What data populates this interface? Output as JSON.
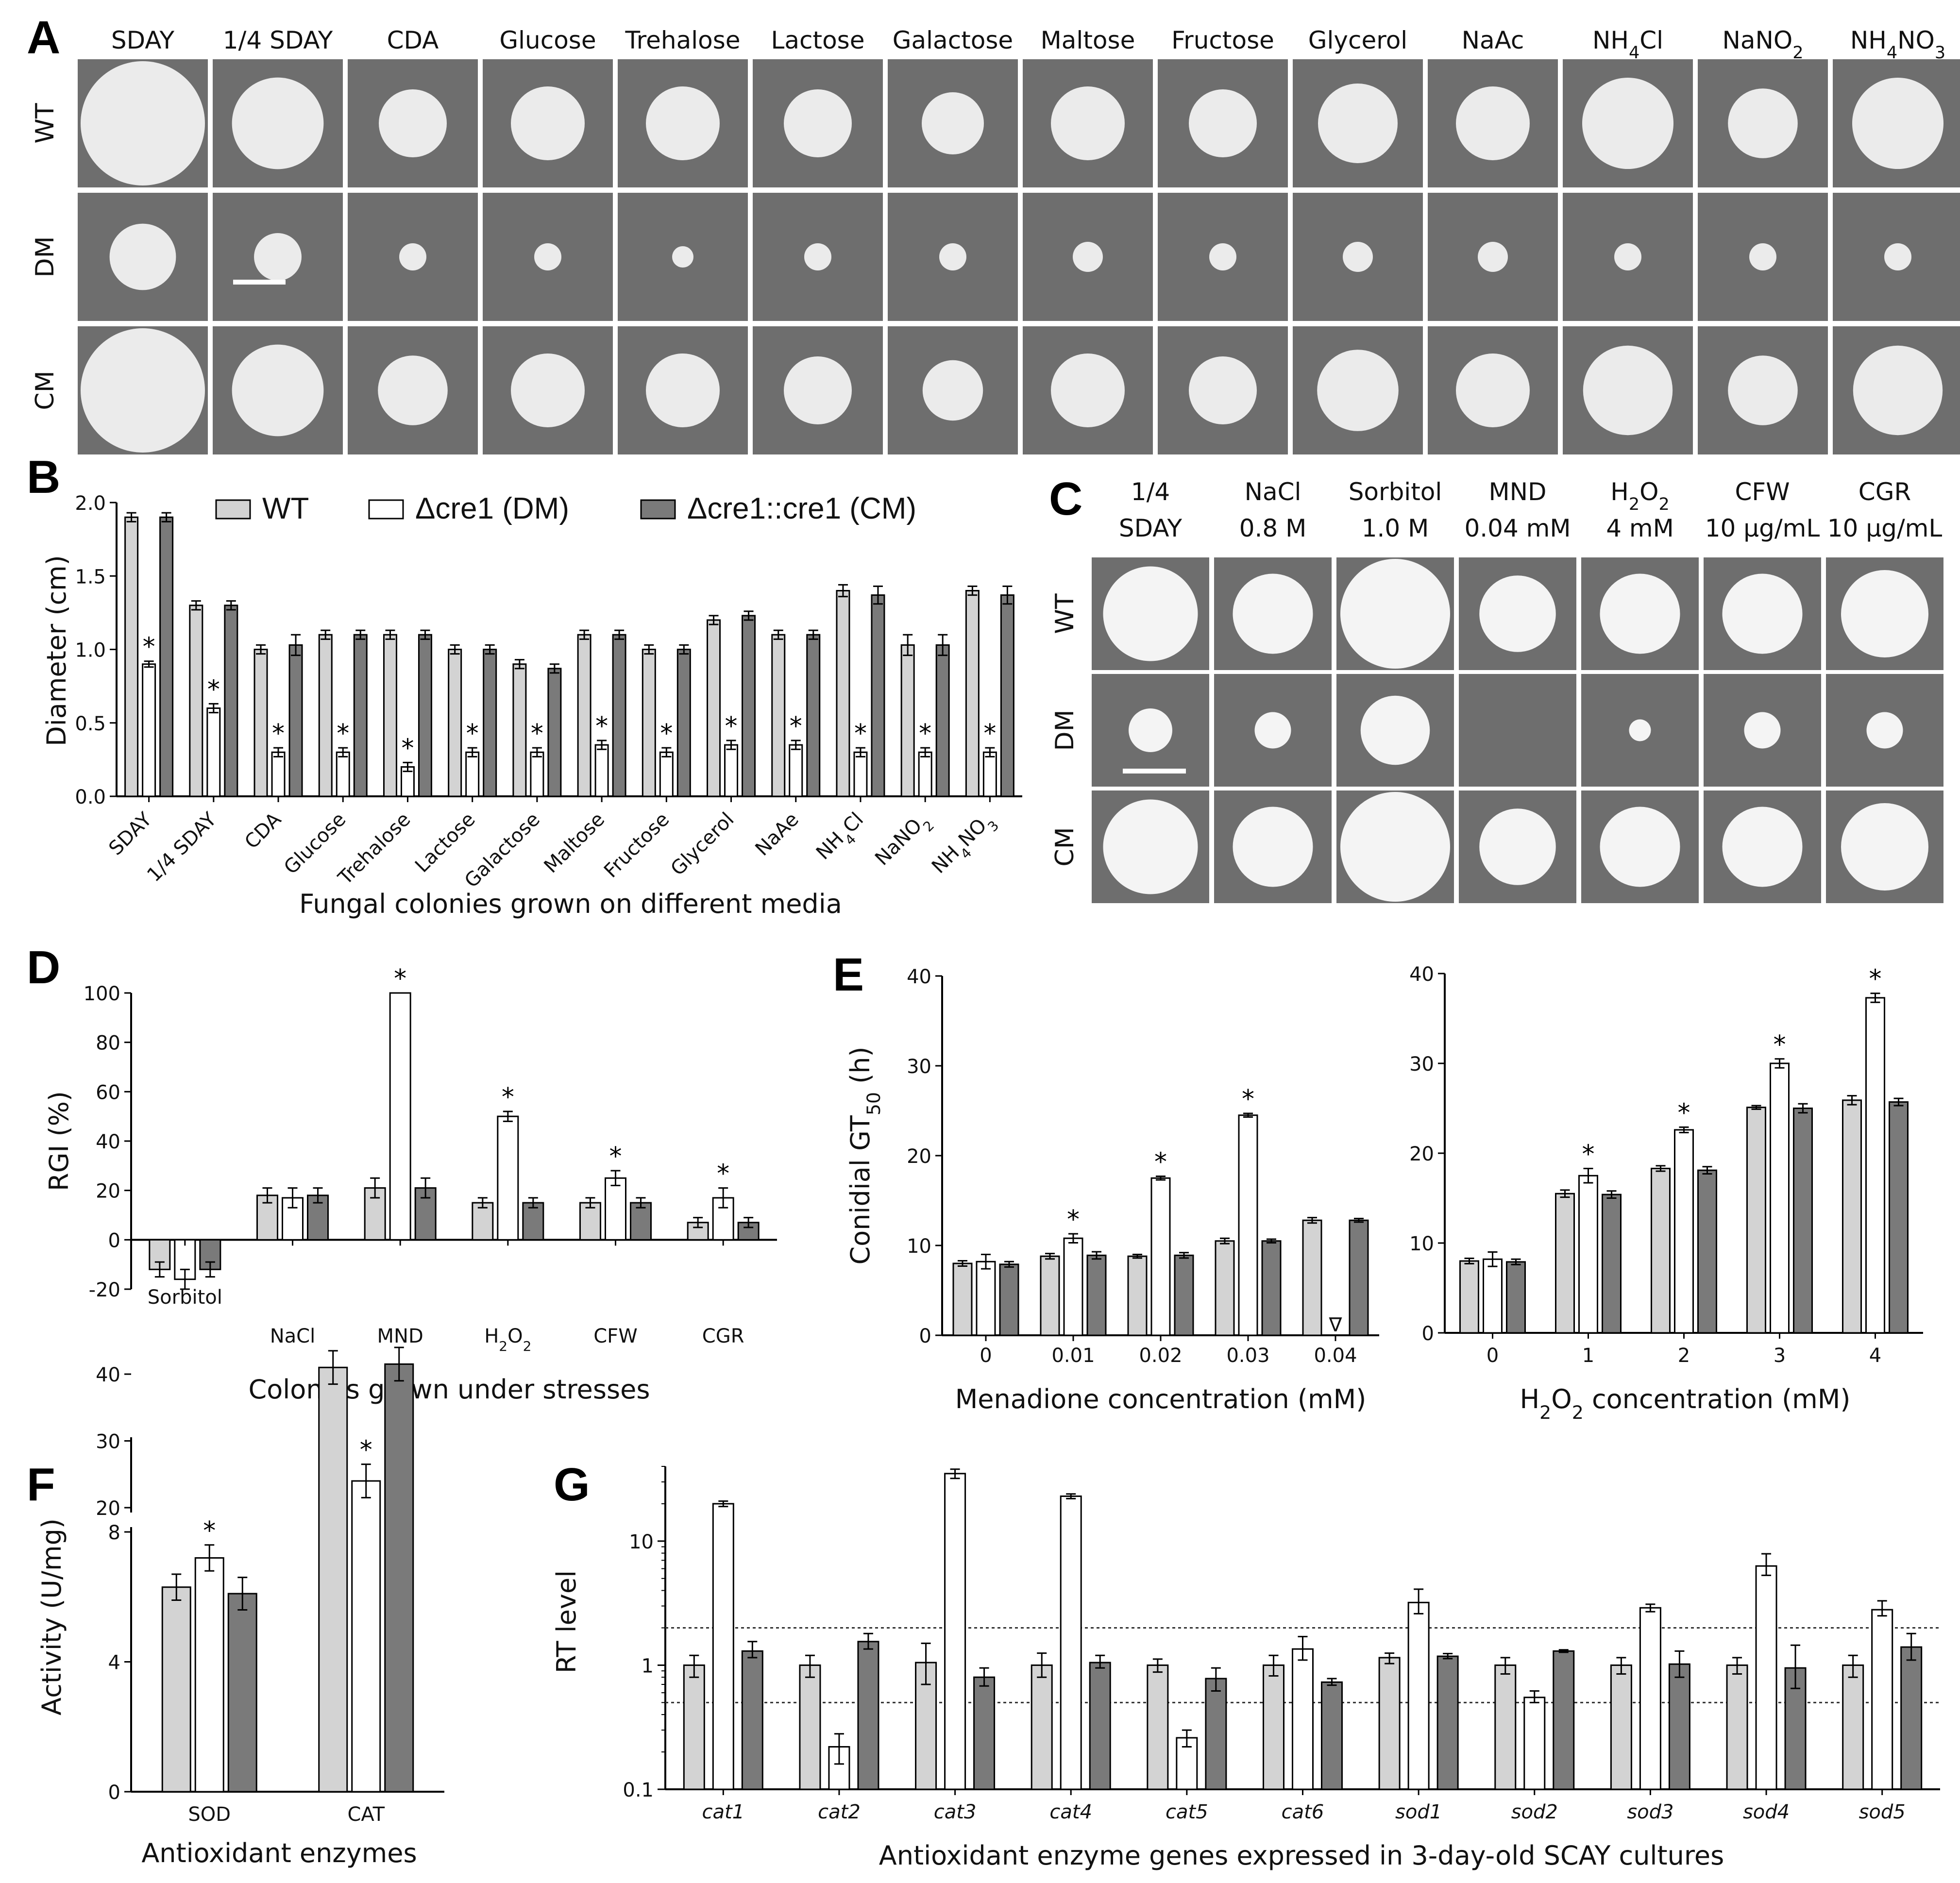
{
  "colors": {
    "wt": "#d3d3d3",
    "dm": "#ffffff",
    "cm": "#7a7a7a",
    "plate": "#6e6e6e",
    "colony": "#f4f4f4"
  },
  "panels": {
    "A": "A",
    "B": "B",
    "C": "C",
    "D": "D",
    "E": "E",
    "F": "F",
    "G": "G"
  },
  "panel_a": {
    "columns": [
      "SDAY",
      "1/4 SDAY",
      "CDA",
      "Glucose",
      "Trehalose",
      "Lactose",
      "Galactose",
      "Maltose",
      "Fructose",
      "Glycerol",
      "NaAc",
      "NH4Cl",
      "NaNO2",
      "NH4NO3"
    ],
    "rows": [
      "WT",
      "DM",
      "CM"
    ],
    "colony_diameter_cm": [
      [
        1.9,
        1.3,
        1.0,
        1.1,
        1.1,
        1.0,
        0.9,
        1.1,
        1.0,
        1.2,
        1.1,
        1.4,
        1.03,
        1.4
      ],
      [
        0.9,
        0.6,
        0.3,
        0.3,
        0.2,
        0.3,
        0.3,
        0.35,
        0.3,
        0.35,
        0.35,
        0.3,
        0.3,
        0.3
      ],
      [
        1.9,
        1.3,
        1.03,
        1.1,
        1.1,
        1.0,
        0.87,
        1.1,
        1.0,
        1.23,
        1.1,
        1.37,
        1.03,
        1.37
      ]
    ]
  },
  "panel_c": {
    "columns": [
      [
        "1/4",
        "SDAY"
      ],
      [
        "NaCl",
        "0.8 M"
      ],
      [
        "Sorbitol",
        "1.0 M"
      ],
      [
        "MND",
        "0.04 mM"
      ],
      [
        "H2O2",
        "4 mM"
      ],
      [
        "CFW",
        "10 μg/mL"
      ],
      [
        "CGR",
        "10 μg/mL"
      ]
    ],
    "rows": [
      "WT",
      "DM",
      "CM"
    ],
    "colony_diameter_cm": [
      [
        1.3,
        1.1,
        1.55,
        1.05,
        1.1,
        1.1,
        1.2
      ],
      [
        0.6,
        0.5,
        0.95,
        0.0,
        0.3,
        0.5,
        0.5
      ],
      [
        1.3,
        1.1,
        1.55,
        1.05,
        1.1,
        1.1,
        1.2
      ]
    ]
  },
  "chart_data": [
    {
      "id": "B",
      "type": "bar",
      "legend": [
        "WT",
        "Δcre1 (DM)",
        "Δcre1::cre1 (CM)"
      ],
      "categories": [
        "SDAY",
        "1/4 SDAY",
        "CDA",
        "Glucose",
        "Trehalose",
        "Lactose",
        "Galactose",
        "Maltose",
        "Fructose",
        "Glycerol",
        "NaAe",
        "NH4Cl",
        "NaNO2",
        "NH4NO3"
      ],
      "series": [
        {
          "name": "WT",
          "values": [
            1.9,
            1.3,
            1.0,
            1.1,
            1.1,
            1.0,
            0.9,
            1.1,
            1.0,
            1.2,
            1.1,
            1.4,
            1.03,
            1.4
          ],
          "err": [
            0.03,
            0.03,
            0.03,
            0.03,
            0.03,
            0.03,
            0.03,
            0.03,
            0.03,
            0.03,
            0.03,
            0.04,
            0.07,
            0.03
          ]
        },
        {
          "name": "Δcre1 (DM)",
          "values": [
            0.9,
            0.6,
            0.3,
            0.3,
            0.2,
            0.3,
            0.3,
            0.35,
            0.3,
            0.35,
            0.35,
            0.3,
            0.3,
            0.3
          ],
          "err": [
            0.02,
            0.03,
            0.03,
            0.03,
            0.03,
            0.03,
            0.03,
            0.03,
            0.03,
            0.03,
            0.03,
            0.03,
            0.03,
            0.03
          ],
          "sig": [
            1,
            1,
            1,
            1,
            1,
            1,
            1,
            1,
            1,
            1,
            1,
            1,
            1,
            1
          ]
        },
        {
          "name": "Δcre1::cre1 (CM)",
          "values": [
            1.9,
            1.3,
            1.03,
            1.1,
            1.1,
            1.0,
            0.87,
            1.1,
            1.0,
            1.23,
            1.1,
            1.37,
            1.03,
            1.37
          ],
          "err": [
            0.03,
            0.03,
            0.07,
            0.03,
            0.03,
            0.03,
            0.03,
            0.03,
            0.03,
            0.03,
            0.03,
            0.06,
            0.07,
            0.06
          ]
        }
      ],
      "ylabel": "Diameter (cm)",
      "xlabel": "Fungal colonies grown on different media",
      "ylim": [
        0,
        2.0
      ],
      "yticks": [
        "0.0",
        "0.5",
        "1.0",
        "1.5",
        "2.0"
      ]
    },
    {
      "id": "D",
      "type": "bar",
      "categories": [
        "Sorbitol",
        "NaCl",
        "MND",
        "H2O2",
        "CFW",
        "CGR"
      ],
      "series": [
        {
          "name": "WT",
          "values": [
            -12,
            18,
            21,
            15,
            15,
            7
          ],
          "err": [
            3,
            3,
            4,
            2,
            2,
            2
          ]
        },
        {
          "name": "DM",
          "values": [
            -16,
            17,
            100,
            50,
            25,
            17
          ],
          "err": [
            4,
            4,
            0,
            2,
            3,
            4
          ],
          "sig": [
            0,
            0,
            1,
            1,
            1,
            1
          ]
        },
        {
          "name": "CM",
          "values": [
            -12,
            18,
            21,
            15,
            15,
            7
          ],
          "err": [
            3,
            3,
            4,
            2,
            2,
            2
          ]
        }
      ],
      "ylabel": "RGI (%)",
      "xlabel": "Colonies grown under stresses",
      "ylim": [
        -20,
        100
      ],
      "yticks": [
        "-20",
        "0",
        "20",
        "40",
        "60",
        "80",
        "100"
      ]
    },
    {
      "id": "E1",
      "type": "bar",
      "categories": [
        "0",
        "0.01",
        "0.02",
        "0.03",
        "0.04"
      ],
      "series": [
        {
          "name": "WT",
          "values": [
            8,
            8.8,
            8.8,
            10.5,
            12.8
          ],
          "err": [
            0.3,
            0.3,
            0.2,
            0.3,
            0.3
          ]
        },
        {
          "name": "DM",
          "values": [
            8.2,
            10.8,
            17.5,
            24.5,
            null
          ],
          "err": [
            0.8,
            0.5,
            0.2,
            0.2,
            0
          ],
          "sig": [
            0,
            1,
            1,
            1,
            0
          ]
        },
        {
          "name": "CM",
          "values": [
            7.9,
            8.9,
            8.9,
            10.5,
            12.8
          ],
          "err": [
            0.3,
            0.4,
            0.3,
            0.2,
            0.2
          ]
        }
      ],
      "ylabel": "Conidial GT50 (h)",
      "xlabel": "Menadione concentration (mM)",
      "ylim": [
        0,
        40
      ],
      "yticks": [
        "0",
        "10",
        "20",
        "30",
        "40"
      ],
      "missing_marker": "∇"
    },
    {
      "id": "E2",
      "type": "bar",
      "categories": [
        "0",
        "1",
        "2",
        "3",
        "4"
      ],
      "series": [
        {
          "name": "WT",
          "values": [
            8,
            15.5,
            18.3,
            25.1,
            25.9
          ],
          "err": [
            0.3,
            0.4,
            0.3,
            0.2,
            0.5
          ]
        },
        {
          "name": "DM",
          "values": [
            8.2,
            17.5,
            22.6,
            30,
            37.3
          ],
          "err": [
            0.8,
            0.8,
            0.3,
            0.5,
            0.5
          ],
          "sig": [
            0,
            1,
            1,
            1,
            1
          ]
        },
        {
          "name": "CM",
          "values": [
            7.9,
            15.4,
            18.1,
            25.0,
            25.7
          ],
          "err": [
            0.3,
            0.4,
            0.4,
            0.5,
            0.4
          ]
        }
      ],
      "xlabel": "H2O2 concentration (mM)",
      "ylim": [
        0,
        40
      ],
      "yticks": [
        "0",
        "10",
        "20",
        "30",
        "40"
      ]
    },
    {
      "id": "F",
      "type": "bar",
      "categories": [
        "SOD",
        "CAT"
      ],
      "series": [
        {
          "name": "WT",
          "values": [
            6.3,
            41
          ],
          "err": [
            0.4,
            2.5
          ]
        },
        {
          "name": "DM",
          "values": [
            7.2,
            24
          ],
          "err": [
            0.4,
            2.5
          ],
          "sig": [
            1,
            1
          ]
        },
        {
          "name": "CM",
          "values": [
            6.1,
            41.5
          ],
          "err": [
            0.5,
            2.5
          ]
        }
      ],
      "ylabel": "Activity (U/mg)",
      "xlabel": "Antioxidant enzymes",
      "yticks_lower": [
        "0",
        "4",
        "8"
      ],
      "yticks_upper": [
        "20",
        "30",
        "40"
      ],
      "axis_break": [
        8,
        20
      ]
    },
    {
      "id": "G",
      "type": "bar",
      "yscale": "log",
      "categories": [
        "cat1",
        "cat2",
        "cat3",
        "cat4",
        "cat5",
        "cat6",
        "sod1",
        "sod2",
        "sod3",
        "sod4",
        "sod5"
      ],
      "series": [
        {
          "name": "WT",
          "values": [
            1,
            1,
            1.05,
            1,
            1,
            1,
            1.15,
            1,
            1,
            1,
            1
          ],
          "err_lo": [
            0.8,
            0.8,
            0.7,
            0.8,
            0.88,
            0.82,
            1.03,
            0.85,
            0.85,
            0.85,
            0.8
          ],
          "err_hi": [
            1.2,
            1.2,
            1.5,
            1.25,
            1.12,
            1.2,
            1.25,
            1.15,
            1.15,
            1.15,
            1.2
          ]
        },
        {
          "name": "DM",
          "values": [
            20,
            0.22,
            35,
            23,
            0.26,
            1.35,
            3.2,
            0.55,
            2.9,
            6.3,
            2.8
          ],
          "err_lo": [
            19,
            0.16,
            32,
            22,
            0.22,
            1.1,
            2.6,
            0.5,
            2.7,
            5.3,
            2.5
          ],
          "err_hi": [
            21,
            0.28,
            38,
            24,
            0.3,
            1.7,
            4.1,
            0.62,
            3.1,
            7.9,
            3.3
          ]
        },
        {
          "name": "CM",
          "values": [
            1.3,
            1.55,
            0.8,
            1.05,
            0.78,
            0.73,
            1.18,
            1.3,
            1.02,
            0.95,
            1.4
          ],
          "err_lo": [
            1.15,
            1.35,
            0.68,
            0.95,
            0.62,
            0.69,
            1.13,
            1.27,
            0.8,
            0.65,
            1.1
          ],
          "err_hi": [
            1.55,
            1.8,
            0.95,
            1.2,
            0.95,
            0.78,
            1.24,
            1.33,
            1.3,
            1.45,
            1.8
          ]
        }
      ],
      "ylabel": "RT level",
      "xlabel": "Antioxidant enzyme genes expressed in 3-day-old SCAY cultures",
      "ylim": [
        0.1,
        40
      ],
      "yticks": [
        "0.1",
        "1",
        "10"
      ],
      "reference_lines": [
        0.5,
        2
      ]
    }
  ],
  "sig_mark": "*"
}
